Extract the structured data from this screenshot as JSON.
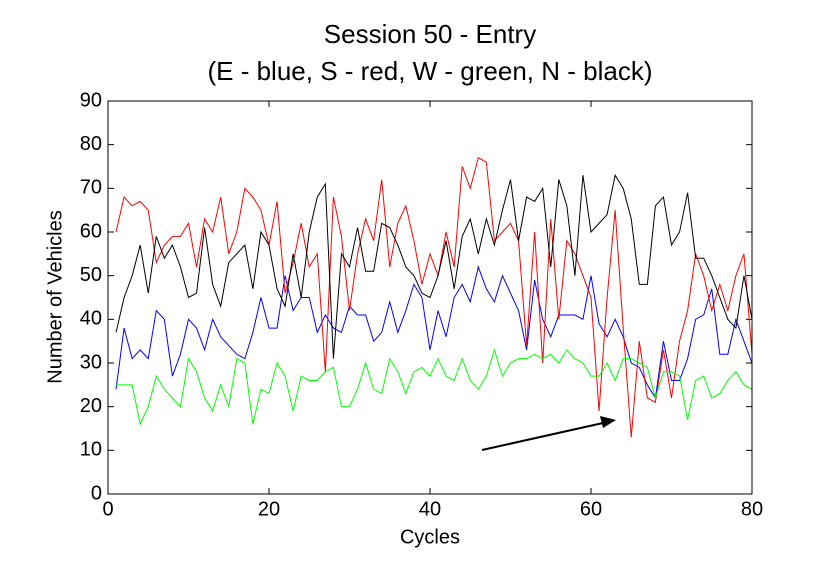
{
  "chart_data": {
    "type": "line",
    "title": "Session 50 - Entry",
    "subtitle": "(E - blue, S - red, W - green, N - black)",
    "xlabel": "Cycles",
    "ylabel": "Number of Vehicles",
    "x": [
      1,
      2,
      3,
      4,
      5,
      6,
      7,
      8,
      9,
      10,
      11,
      12,
      13,
      14,
      15,
      16,
      17,
      18,
      19,
      20,
      21,
      22,
      23,
      24,
      25,
      26,
      27,
      28,
      29,
      30,
      31,
      32,
      33,
      34,
      35,
      36,
      37,
      38,
      39,
      40,
      41,
      42,
      43,
      44,
      45,
      46,
      47,
      48,
      49,
      50,
      51,
      52,
      53,
      54,
      55,
      56,
      57,
      58,
      59,
      60,
      61,
      62,
      63,
      64,
      65,
      66,
      67,
      68,
      69,
      70,
      71,
      72,
      73,
      74,
      75,
      76,
      77,
      78,
      79,
      80
    ],
    "series": [
      {
        "name": "E",
        "color": "#0000ff",
        "values": [
          24,
          38,
          31,
          33,
          31,
          42,
          40,
          27,
          32,
          40,
          38,
          33,
          40,
          36,
          34,
          32,
          31,
          37,
          45,
          38,
          38,
          50,
          42,
          45,
          45,
          37,
          41,
          38,
          37,
          43,
          41,
          41,
          35,
          37,
          44,
          37,
          42,
          48,
          45,
          33,
          42,
          36,
          45,
          48,
          44,
          52,
          47,
          44,
          50,
          46,
          42,
          33,
          49,
          40,
          36,
          41,
          41,
          41,
          40,
          50,
          39,
          36,
          40,
          36,
          30,
          29,
          25,
          22,
          35,
          26,
          26,
          31,
          40,
          41,
          47,
          32,
          32,
          40,
          35,
          30
        ]
      },
      {
        "name": "S",
        "color": "#ff0000",
        "values": [
          60,
          68,
          66,
          67,
          65,
          53,
          57,
          59,
          59,
          62,
          52,
          63,
          60,
          68,
          55,
          60,
          70,
          68,
          65,
          57,
          67,
          46,
          53,
          62,
          52,
          55,
          28,
          68,
          59,
          42,
          55,
          63,
          58,
          72,
          52,
          62,
          66,
          58,
          48,
          55,
          50,
          60,
          52,
          75,
          70,
          77,
          76,
          58,
          60,
          62,
          58,
          34,
          60,
          30,
          63,
          40,
          58,
          55,
          50,
          45,
          19,
          45,
          65,
          38,
          13,
          35,
          22,
          21,
          33,
          22,
          35,
          42,
          55,
          50,
          42,
          48,
          42,
          50,
          55,
          32
        ]
      },
      {
        "name": "W",
        "color": "#00ff00",
        "values": [
          25,
          25,
          25,
          16,
          20,
          27,
          24,
          22,
          20,
          31,
          28,
          22,
          19,
          25,
          20,
          31,
          30,
          16,
          24,
          23,
          30,
          27,
          19,
          27,
          26,
          26,
          28,
          29,
          20,
          20,
          24,
          30,
          24,
          23,
          31,
          28,
          23,
          28,
          29,
          27,
          31,
          27,
          26,
          31,
          26,
          24,
          27,
          33,
          27,
          30,
          31,
          31,
          32,
          31,
          32,
          30,
          33,
          31,
          30,
          27,
          27,
          30,
          26,
          31,
          31,
          30,
          29,
          22,
          28,
          28,
          27,
          17,
          26,
          27,
          22,
          23,
          26,
          28,
          25,
          24
        ]
      },
      {
        "name": "N",
        "color": "#000000",
        "values": [
          37,
          45,
          50,
          57,
          46,
          59,
          54,
          57,
          52,
          45,
          46,
          61,
          48,
          43,
          53,
          55,
          57,
          47,
          60,
          57,
          47,
          43,
          55,
          45,
          60,
          68,
          71,
          31,
          55,
          52,
          61,
          51,
          51,
          62,
          61,
          57,
          52,
          50,
          46,
          45,
          50,
          58,
          47,
          59,
          63,
          55,
          63,
          57,
          65,
          72,
          58,
          68,
          67,
          70,
          52,
          72,
          66,
          50,
          73,
          60,
          62,
          64,
          73,
          70,
          63,
          48,
          48,
          66,
          68,
          57,
          60,
          69,
          54,
          54,
          50,
          45,
          40,
          38,
          50,
          40
        ]
      }
    ],
    "xlim": [
      0,
      80
    ],
    "xticks": [
      0,
      20,
      40,
      60,
      80
    ],
    "ylim": [
      0,
      90
    ],
    "yticks": [
      0,
      10,
      20,
      30,
      40,
      50,
      60,
      70,
      80,
      90
    ]
  }
}
